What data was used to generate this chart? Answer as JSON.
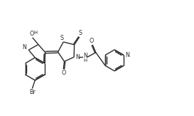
{
  "background": "#ffffff",
  "line_color": "#2a2a2a",
  "line_width": 1.0,
  "font_size": 5.8,
  "fig_width": 2.73,
  "fig_height": 1.63,
  "dpi": 100,
  "xlim": [
    0,
    10.5
  ],
  "ylim": [
    0,
    6.3
  ]
}
